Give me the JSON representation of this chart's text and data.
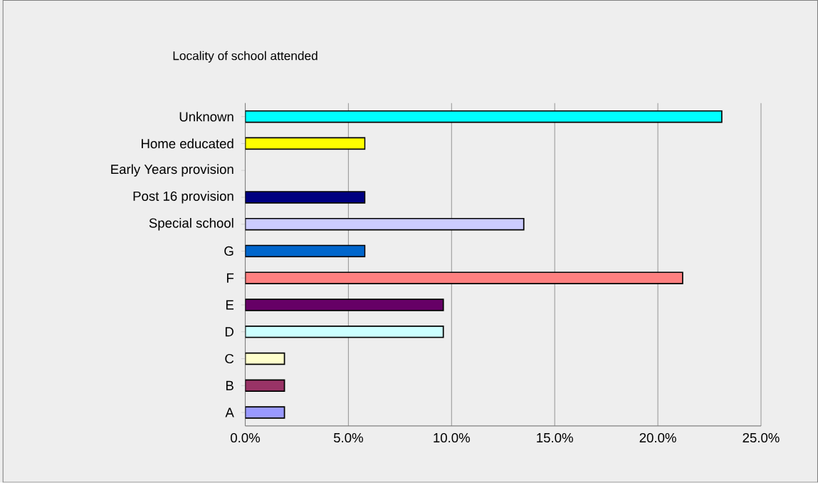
{
  "chart_data": {
    "type": "bar",
    "orientation": "horizontal",
    "title": "Locality of school attended",
    "categories": [
      "Unknown",
      "Home educated",
      "Early Years provision",
      "Post 16 provision",
      "Special school",
      "G",
      "F",
      "E",
      "D",
      "C",
      "B",
      "A"
    ],
    "values": [
      23.1,
      5.8,
      0,
      5.8,
      13.5,
      5.8,
      21.2,
      9.6,
      9.6,
      1.9,
      1.9,
      1.9
    ],
    "colors": [
      "#00ffff",
      "#ffff00",
      "#ffffff",
      "#000080",
      "#ccccff",
      "#0066cc",
      "#ff8080",
      "#660066",
      "#ccffff",
      "#ffffcc",
      "#993366",
      "#9999ff"
    ],
    "xlim": [
      0,
      25
    ],
    "xticks": [
      {
        "value": 0,
        "label": "0.0%"
      },
      {
        "value": 5,
        "label": "5.0%"
      },
      {
        "value": 10,
        "label": "10.0%"
      },
      {
        "value": 15,
        "label": "15.0%"
      },
      {
        "value": 20,
        "label": "20.0%"
      },
      {
        "value": 25,
        "label": "25.0%"
      }
    ],
    "grid": "x"
  }
}
